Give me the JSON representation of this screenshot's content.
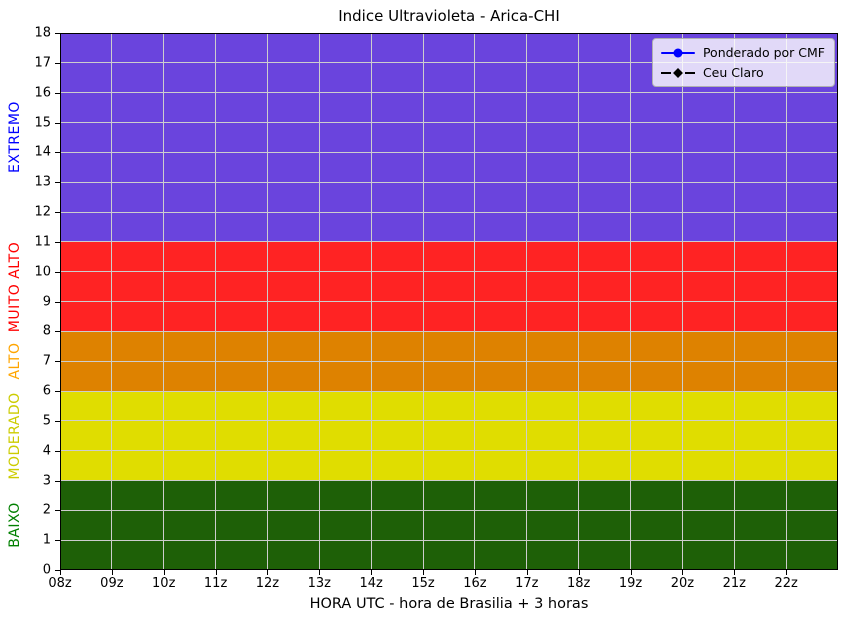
{
  "chart_data": {
    "type": "line",
    "title": "Indice Ultravioleta - Arica-CHI",
    "xlabel": "HORA UTC - hora de Brasilia + 3 horas",
    "ylabel": "",
    "xlim": [
      8,
      23
    ],
    "ylim": [
      0,
      18
    ],
    "grid": true,
    "grid_color": "#cdcdcd",
    "axis_color": "#000000",
    "x_tick_values": [
      8,
      9,
      10,
      11,
      12,
      13,
      14,
      15,
      16,
      17,
      18,
      19,
      20,
      21,
      22
    ],
    "x_tick_labels": [
      "08z",
      "09z",
      "10z",
      "11z",
      "12z",
      "13z",
      "14z",
      "15z",
      "16z",
      "17z",
      "18z",
      "19z",
      "20z",
      "21z",
      "22z"
    ],
    "y_ticks": [
      0,
      1,
      2,
      3,
      4,
      5,
      6,
      7,
      8,
      9,
      10,
      11,
      12,
      13,
      14,
      15,
      16,
      17,
      18
    ],
    "legend_position": "upper right",
    "series": [
      {
        "name": "Ponderado por CMF",
        "color": "#0000ff",
        "line_style": "solid",
        "marker": "circle",
        "x": [],
        "values": []
      },
      {
        "name": "Ceu Claro",
        "color": "#000000",
        "line_style": "dashed",
        "marker": "diamond",
        "x": [],
        "values": []
      }
    ],
    "bands": [
      {
        "label": "BAIXO",
        "from": 0,
        "to": 3,
        "fill_color": "#1e6007",
        "label_color": "#008000"
      },
      {
        "label": "MODERADO",
        "from": 3,
        "to": 6,
        "fill_color": "#e0dd00",
        "label_color": "#cccc00"
      },
      {
        "label": "ALTO",
        "from": 6,
        "to": 8,
        "fill_color": "#de8200",
        "label_color": "#ffa500"
      },
      {
        "label": "MUITO ALTO",
        "from": 8,
        "to": 11,
        "fill_color": "#ff2323",
        "label_color": "#ff0000"
      },
      {
        "label": "EXTREMO",
        "from": 11,
        "to": 18,
        "fill_color": "#6a44dd",
        "label_color": "#0000ff"
      }
    ]
  }
}
